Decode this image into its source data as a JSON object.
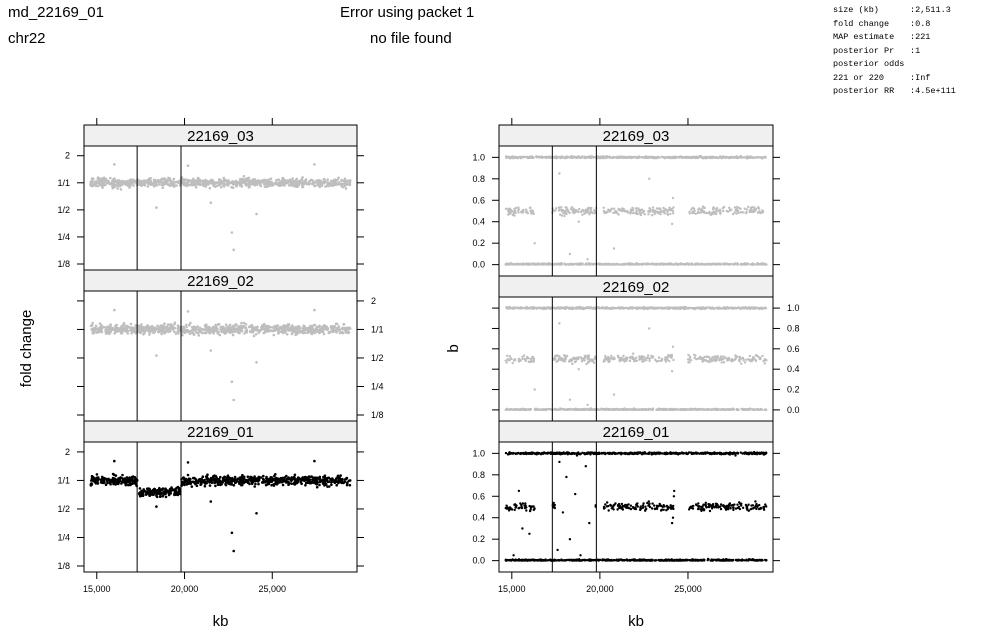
{
  "header": {
    "sample": "md_22169_01",
    "chromosome": "chr22",
    "error_line1": "Error using packet 1",
    "error_line2": "no file found"
  },
  "stats": [
    {
      "key": "size (kb)",
      "value": ":2,511.3"
    },
    {
      "key": "fold change",
      "value": ":0.8"
    },
    {
      "key": "MAP estimate",
      "value": ":221"
    },
    {
      "key": "posterior Pr",
      "value": ":1"
    },
    {
      "key": "posterior odds",
      "value": ""
    },
    {
      "key": "221 or 220",
      "value": ":Inf"
    },
    {
      "key": "posterior RR",
      "value": ":4.5e+111"
    }
  ],
  "colors": {
    "reference": "#bebebe",
    "index": "#000000",
    "strip": "#f0f0f0",
    "frame": "#000000"
  },
  "chart_data": [
    {
      "type": "scatter",
      "xlabel": "kb",
      "ylabel": "fold change",
      "xlim": [
        14500,
        29600
      ],
      "xticks": [
        15000,
        20000,
        25000
      ],
      "xtick_labels": [
        "15,000",
        "20,000",
        "25,000"
      ],
      "scale": "log2",
      "ylim": [
        0.125,
        2.2
      ],
      "yticks": [
        2,
        1,
        0.5,
        0.25,
        0.125
      ],
      "ytick_labels": [
        "2",
        "1/1",
        "1/2",
        "1/4",
        "1/8"
      ],
      "region_bounds_kb": [
        17300,
        19800
      ],
      "panels": [
        {
          "name": "22169_03",
          "color": "#bebebe",
          "profile": [
            [
              14500,
              1.0
            ],
            [
              29600,
              1.0
            ]
          ]
        },
        {
          "name": "22169_02",
          "color": "#bebebe",
          "profile": [
            [
              14500,
              1.0
            ],
            [
              29600,
              1.0
            ]
          ]
        },
        {
          "name": "22169_01",
          "color": "#000000",
          "profile": [
            [
              14500,
              1.0
            ],
            [
              17300,
              1.0
            ],
            [
              17300,
              0.75
            ],
            [
              19800,
              0.75
            ],
            [
              19800,
              1.0
            ],
            [
              29600,
              1.0
            ]
          ]
        }
      ]
    },
    {
      "type": "scatter",
      "xlabel": "kb",
      "ylabel": "b",
      "xlim": [
        14500,
        29600
      ],
      "xticks": [
        15000,
        20000,
        25000
      ],
      "xtick_labels": [
        "15,000",
        "20,000",
        "25,000"
      ],
      "ylim": [
        -0.05,
        1.05
      ],
      "yticks": [
        0,
        0.2,
        0.4,
        0.6,
        0.8,
        1.0
      ],
      "ytick_labels": [
        "0.0",
        "0.2",
        "0.4",
        "0.6",
        "0.8",
        "1.0"
      ],
      "region_bounds_kb": [
        17300,
        19800
      ],
      "bands": [
        0.0,
        0.5,
        1.0
      ],
      "panels": [
        {
          "name": "22169_03",
          "color": "#bebebe"
        },
        {
          "name": "22169_02",
          "color": "#bebebe"
        },
        {
          "name": "22169_01",
          "color": "#000000"
        }
      ]
    }
  ]
}
